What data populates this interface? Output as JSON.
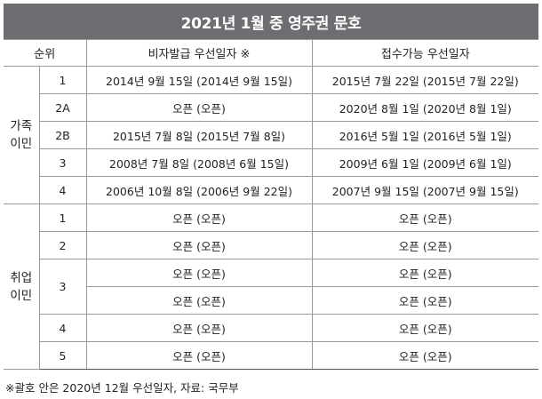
{
  "title": "2021년 1월 중 영주권 문호",
  "headers": {
    "rank": "순위",
    "visa_date": "비자발급 우선일자 ※",
    "filing_date": "접수가능 우선일자"
  },
  "groups": [
    {
      "label_line1": "가족",
      "label_line2": "이민",
      "rows": [
        {
          "rank": "1",
          "visa": "2014년 9월 15일 (2014년 9월 15일)",
          "filing": "2015년 7월 22일 (2015년 7월 22일)"
        },
        {
          "rank": "2A",
          "visa": "오픈 (오픈)",
          "filing": "2020년 8월 1일 (2020년 8월 1일)"
        },
        {
          "rank": "2B",
          "visa": "2015년 7월 8일 (2015년 7월 8일)",
          "filing": "2016년 5월 1일 (2016년 5월 1일)"
        },
        {
          "rank": "3",
          "visa": "2008년 7월 8일 (2008년 6월 15일)",
          "filing": "2009년 6월 1일 (2009년 6월 1일)"
        },
        {
          "rank": "4",
          "visa": "2006년 10월 8일 (2006년 9월 22일)",
          "filing": "2007년 9월 15일 (2007년 9월 15일)"
        }
      ]
    },
    {
      "label_line1": "취업",
      "label_line2": "이민",
      "rows": [
        {
          "rank": "1",
          "visa": "오픈 (오픈)",
          "filing": "오픈 (오픈)"
        },
        {
          "rank": "2",
          "visa": "오픈 (오픈)",
          "filing": "오픈 (오픈)"
        },
        {
          "rank": "3",
          "visa": "오픈 (오픈)",
          "filing": "오픈 (오픈)"
        },
        {
          "rank": "",
          "visa": "오픈 (오픈)",
          "filing": "오픈 (오픈)"
        },
        {
          "rank": "4",
          "visa": "오픈 (오픈)",
          "filing": "오픈 (오픈)"
        },
        {
          "rank": "5",
          "visa": "오픈 (오픈)",
          "filing": "오픈 (오픈)"
        }
      ]
    }
  ],
  "footnote": "※괄호 안은 2020년 12월 우선일자, 자료: 국무부"
}
